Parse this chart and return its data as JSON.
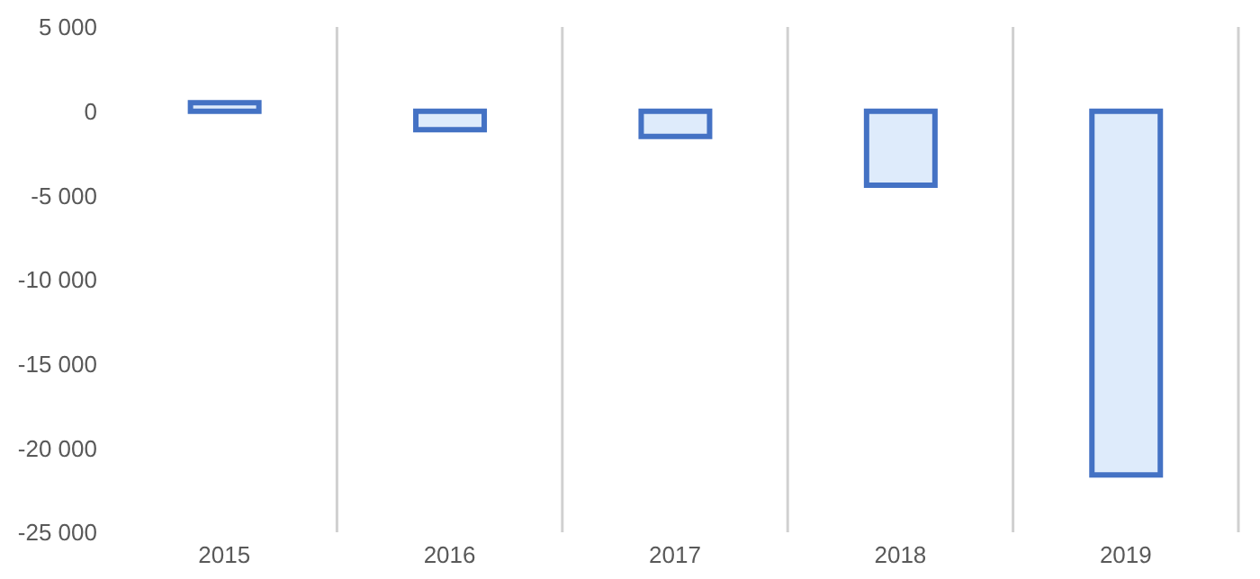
{
  "chart_data": {
    "type": "bar",
    "categories": [
      "2015",
      "2016",
      "2017",
      "2018",
      "2019"
    ],
    "series": [
      {
        "color": "#4472c4",
        "values": [
          500,
          -1100,
          -1500,
          -4400,
          -21600
        ]
      }
    ],
    "ylim": [
      -25000,
      5000
    ],
    "yticks": [
      {
        "value": -25000,
        "label": "-25 000"
      },
      {
        "value": -20000,
        "label": "-20 000"
      },
      {
        "value": -15000,
        "label": "-15 000"
      },
      {
        "value": -10000,
        "label": "-10 000"
      },
      {
        "value": -5000,
        "label": "-5 000"
      },
      0,
      {
        "value": 5000,
        "label": "5 000"
      }
    ],
    "grid": "x",
    "legend": false
  }
}
